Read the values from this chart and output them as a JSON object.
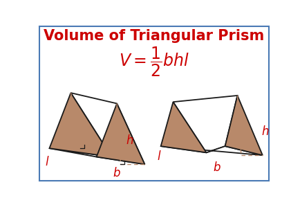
{
  "title": "Volume of Triangular Prism",
  "title_color": "#cc0000",
  "title_fontsize": 15,
  "formula_color": "#cc0000",
  "formula_fontsize": 17,
  "bg_color": "#ffffff",
  "border_color": "#4a7ab5",
  "prism_face_color": "#b8896a",
  "prism_edge_color": "#1a1a1a",
  "label_color": "#cc0000",
  "label_fontsize": 12,
  "dashed_color": "#b8896a"
}
